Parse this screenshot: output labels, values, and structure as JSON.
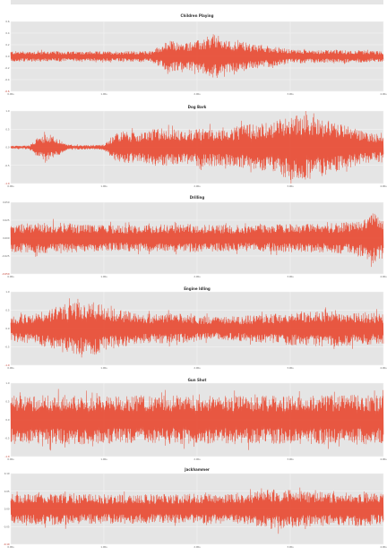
{
  "colors": {
    "panel_bg": "#e5e5e5",
    "grid": "#f6f6f6",
    "wave": "#e8472f",
    "page_bg": "#ffffff"
  },
  "chart_data": [
    {
      "type": "line",
      "title": "Children Playing",
      "x_tick_labels": [
        "0.00s",
        "1.00s",
        "2.00s",
        "3.00s",
        "4.00s"
      ],
      "y_tick_labels": [
        "0.6",
        "0.4",
        "0.2",
        "0.0",
        "-0.2",
        "-0.4",
        "-0.6"
      ],
      "x_range": [
        0,
        4
      ],
      "y_range": [
        -0.65,
        0.65
      ],
      "grid": true,
      "envelope": {
        "x": [
          0.0,
          0.4,
          0.8,
          1.2,
          1.5,
          1.62,
          1.7,
          1.85,
          2.0,
          2.1,
          2.2,
          2.3,
          2.5,
          2.6,
          2.8,
          3.0,
          3.4,
          3.8,
          4.0
        ],
        "amplitude": [
          0.1,
          0.1,
          0.09,
          0.1,
          0.1,
          0.22,
          0.3,
          0.25,
          0.3,
          0.33,
          0.42,
          0.3,
          0.28,
          0.22,
          0.2,
          0.13,
          0.12,
          0.11,
          0.1
        ]
      }
    },
    {
      "type": "line",
      "title": "Dog Bark",
      "x_tick_labels": [
        "0.00s",
        "1.00s",
        "2.00s",
        "3.00s",
        "4.00s"
      ],
      "y_tick_labels": [
        "1.0",
        "0.5",
        "0.0",
        "-0.5",
        "-1.0"
      ],
      "x_range": [
        0,
        4
      ],
      "y_range": [
        -1.0,
        1.0
      ],
      "grid": true,
      "envelope": {
        "x": [
          0.0,
          0.2,
          0.3,
          0.4,
          0.5,
          0.6,
          0.8,
          1.0,
          1.1,
          1.2,
          1.4,
          1.6,
          1.8,
          1.95,
          2.1,
          2.3,
          2.5,
          2.8,
          3.0,
          3.2,
          3.4,
          3.6,
          3.8,
          4.0
        ],
        "amplitude": [
          0.04,
          0.05,
          0.3,
          0.38,
          0.25,
          0.08,
          0.06,
          0.08,
          0.35,
          0.45,
          0.4,
          0.55,
          0.48,
          0.5,
          0.55,
          0.5,
          0.62,
          0.7,
          0.9,
          0.92,
          0.75,
          0.6,
          0.45,
          0.35
        ]
      }
    },
    {
      "type": "line",
      "title": "Drilling",
      "x_tick_labels": [
        "0.00s",
        "1.00s",
        "2.00s",
        "3.00s",
        "4.00s"
      ],
      "y_tick_labels": [
        "0.050",
        "0.025",
        "0.000",
        "-0.025",
        "-0.050"
      ],
      "x_range": [
        0,
        4
      ],
      "y_range": [
        -0.055,
        0.055
      ],
      "grid": true,
      "envelope": {
        "x": [
          0.0,
          0.5,
          1.0,
          1.5,
          2.0,
          2.5,
          3.0,
          3.5,
          3.8,
          3.9,
          4.0
        ],
        "amplitude": [
          0.022,
          0.024,
          0.02,
          0.021,
          0.022,
          0.02,
          0.022,
          0.023,
          0.03,
          0.04,
          0.025
        ]
      }
    },
    {
      "type": "line",
      "title": "Engine Idling",
      "x_tick_labels": [
        "0.00s",
        "1.00s",
        "2.00s",
        "3.00s",
        "4.00s"
      ],
      "y_tick_labels": [
        "1.0",
        "0.5",
        "0.0",
        "-0.5",
        "-1.0"
      ],
      "x_range": [
        0,
        4
      ],
      "y_range": [
        -1.1,
        1.1
      ],
      "grid": true,
      "envelope": {
        "x": [
          0.0,
          0.3,
          0.6,
          0.9,
          1.1,
          1.4,
          1.8,
          2.2,
          2.6,
          3.0,
          3.4,
          3.8,
          4.0
        ],
        "amplitude": [
          0.35,
          0.5,
          0.75,
          0.8,
          0.6,
          0.45,
          0.45,
          0.35,
          0.4,
          0.5,
          0.55,
          0.5,
          0.45
        ]
      }
    },
    {
      "type": "line",
      "title": "Gun Shot",
      "x_tick_labels": [
        "0.00s",
        "1.00s",
        "2.00s",
        "3.00s",
        "4.00s"
      ],
      "y_tick_labels": [
        "1.0",
        "0.5",
        "0.0",
        "-0.5",
        "-1.0"
      ],
      "x_range": [
        0,
        4
      ],
      "y_range": [
        -1.1,
        1.1
      ],
      "grid": true,
      "envelope": {
        "x": [
          0.0,
          0.5,
          1.0,
          1.5,
          2.0,
          2.5,
          3.0,
          3.5,
          4.0
        ],
        "amplitude": [
          0.72,
          0.75,
          0.72,
          0.74,
          0.72,
          0.73,
          0.72,
          0.74,
          0.73
        ]
      }
    },
    {
      "type": "line",
      "title": "Jackhammer",
      "x_tick_labels": [
        "0.00s",
        "1.00s",
        "2.00s",
        "3.00s",
        "4.00s"
      ],
      "y_tick_labels": [
        "0.10",
        "0.05",
        "0.00",
        "-0.05",
        "-0.10"
      ],
      "x_range": [
        0,
        4
      ],
      "y_range": [
        -0.12,
        0.12
      ],
      "grid": true,
      "envelope": {
        "x": [
          0.0,
          0.5,
          1.0,
          1.5,
          2.0,
          2.5,
          2.8,
          3.0,
          3.5,
          3.8,
          4.0
        ],
        "amplitude": [
          0.05,
          0.055,
          0.05,
          0.05,
          0.052,
          0.05,
          0.07,
          0.065,
          0.055,
          0.06,
          0.05
        ]
      }
    }
  ]
}
